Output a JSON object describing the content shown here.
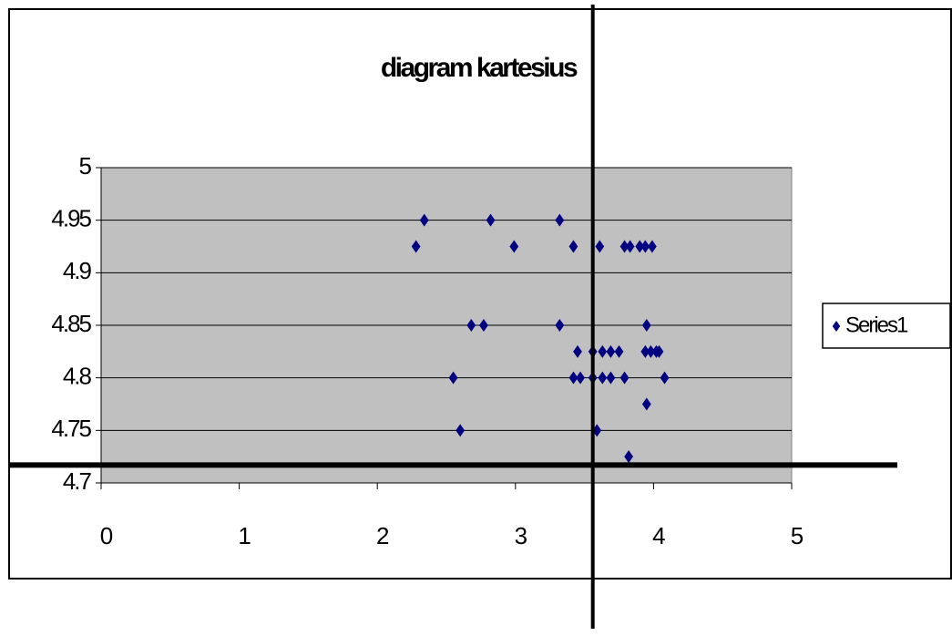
{
  "chart_data": {
    "type": "scatter",
    "title": "diagram kartesius",
    "series": [
      {
        "name": "Series1",
        "color": "#000080",
        "x": [
          2.28,
          2.34,
          2.55,
          2.6,
          2.68,
          2.77,
          2.82,
          2.99,
          3.32,
          3.32,
          3.42,
          3.45,
          3.42,
          3.47,
          3.56,
          3.56,
          3.59,
          3.61,
          3.63,
          3.63,
          3.69,
          3.69,
          3.75,
          3.79,
          3.79,
          3.82,
          3.83,
          3.9,
          3.94,
          3.99,
          3.94,
          3.95,
          3.95,
          3.98,
          4.02,
          4.04,
          4.08
        ],
        "values": [
          4.925,
          4.95,
          4.8,
          4.75,
          4.85,
          4.85,
          4.95,
          4.925,
          4.95,
          4.85,
          4.925,
          4.825,
          4.8,
          4.8,
          4.825,
          4.8,
          4.75,
          4.925,
          4.825,
          4.8,
          4.825,
          4.8,
          4.825,
          4.8,
          4.925,
          4.725,
          4.925,
          4.925,
          4.925,
          4.925,
          4.825,
          4.85,
          4.775,
          4.825,
          4.825,
          4.825,
          4.8
        ]
      }
    ],
    "xlim": [
      0,
      5
    ],
    "xticks": [
      0,
      1,
      2,
      3,
      4,
      5
    ],
    "ylim": [
      4.7,
      5
    ],
    "yticks": [
      4.7,
      4.75,
      4.8,
      4.85,
      4.9,
      4.95,
      5
    ],
    "grid": true,
    "legend": "right",
    "crosshair": {
      "x": 3.56,
      "y": 4.717
    }
  }
}
